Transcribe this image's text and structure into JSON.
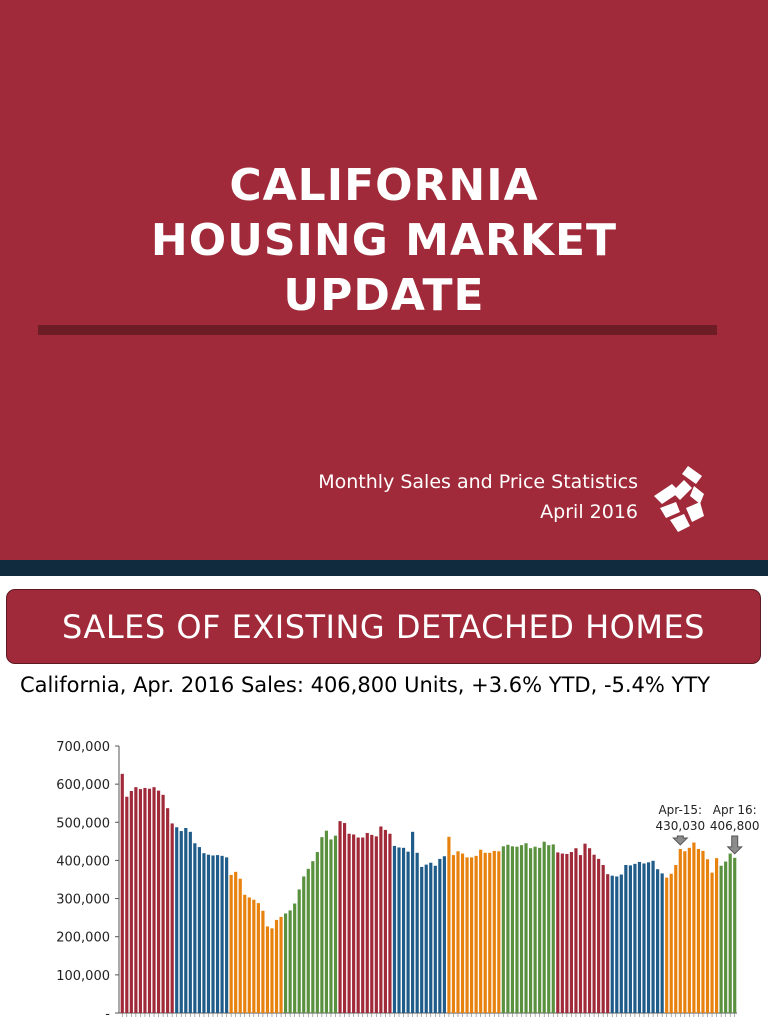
{
  "title_slide": {
    "title_lines": [
      "CALIFORNIA",
      "HOUSING MARKET",
      "UPDATE"
    ],
    "subtitle": "Monthly Sales and Price Statistics",
    "date": "April 2016",
    "logo_icon": "realtors-logo-icon",
    "colors": {
      "background": "#a02a39",
      "rule": "#6e1c26",
      "band": "#0f2b3d"
    }
  },
  "section": {
    "banner": "SALES OF EXISTING DETACHED HOMES"
  },
  "chart_data": {
    "type": "bar",
    "title": "California, Apr. 2016 Sales: 406,800 Units, +3.6% YTD, -5.4% YTY",
    "xlabel": "",
    "ylabel": "",
    "ylim": [
      0,
      700000
    ],
    "yticks": [
      0,
      100000,
      200000,
      300000,
      400000,
      500000,
      600000,
      700000
    ],
    "ytick_labels": [
      "-",
      "100,000",
      "200,000",
      "300,000",
      "400,000",
      "500,000",
      "600,000",
      "700,000"
    ],
    "grid": false,
    "legend": "none",
    "x_start": "Jan 2005",
    "x_end": "Apr 2016",
    "series_colors_by_year": [
      "#a02a39",
      "#1f5c8a",
      "#e8820f",
      "#5a913f"
    ],
    "values": [
      627000,
      567000,
      582000,
      592000,
      587000,
      590000,
      588000,
      592000,
      583000,
      572000,
      537000,
      497000,
      487000,
      477000,
      485000,
      475000,
      445000,
      435000,
      419000,
      415000,
      413000,
      414000,
      412000,
      408000,
      362000,
      370000,
      352000,
      310000,
      303000,
      297000,
      288000,
      268000,
      227000,
      222000,
      244000,
      252000,
      261000,
      269000,
      287000,
      324000,
      358000,
      378000,
      398000,
      422000,
      461000,
      478000,
      455000,
      465000,
      503000,
      498000,
      470000,
      468000,
      460000,
      460000,
      472000,
      467000,
      463000,
      489000,
      480000,
      470000,
      438000,
      434000,
      433000,
      423000,
      475000,
      420000,
      383000,
      389000,
      394000,
      386000,
      404000,
      411000,
      462000,
      414000,
      424000,
      418000,
      408000,
      408000,
      412000,
      428000,
      420000,
      420000,
      425000,
      424000,
      437000,
      441000,
      437000,
      436000,
      440000,
      445000,
      432000,
      436000,
      433000,
      449000,
      440000,
      442000,
      421000,
      418000,
      417000,
      422000,
      432000,
      414000,
      444000,
      432000,
      415000,
      404000,
      388000,
      364000,
      360000,
      358000,
      363000,
      388000,
      387000,
      391000,
      396000,
      392000,
      395000,
      399000,
      377000,
      366000,
      355000,
      365000,
      388000,
      430030,
      424000,
      433000,
      447000,
      430000,
      425000,
      403000,
      368000,
      406000,
      386000,
      397000,
      418000,
      406800
    ],
    "annotations": [
      {
        "label": "Apr-15:",
        "value_text": "430,030",
        "index": 123
      },
      {
        "label": "Apr 16:",
        "value_text": "406,800",
        "index": 135
      }
    ]
  }
}
